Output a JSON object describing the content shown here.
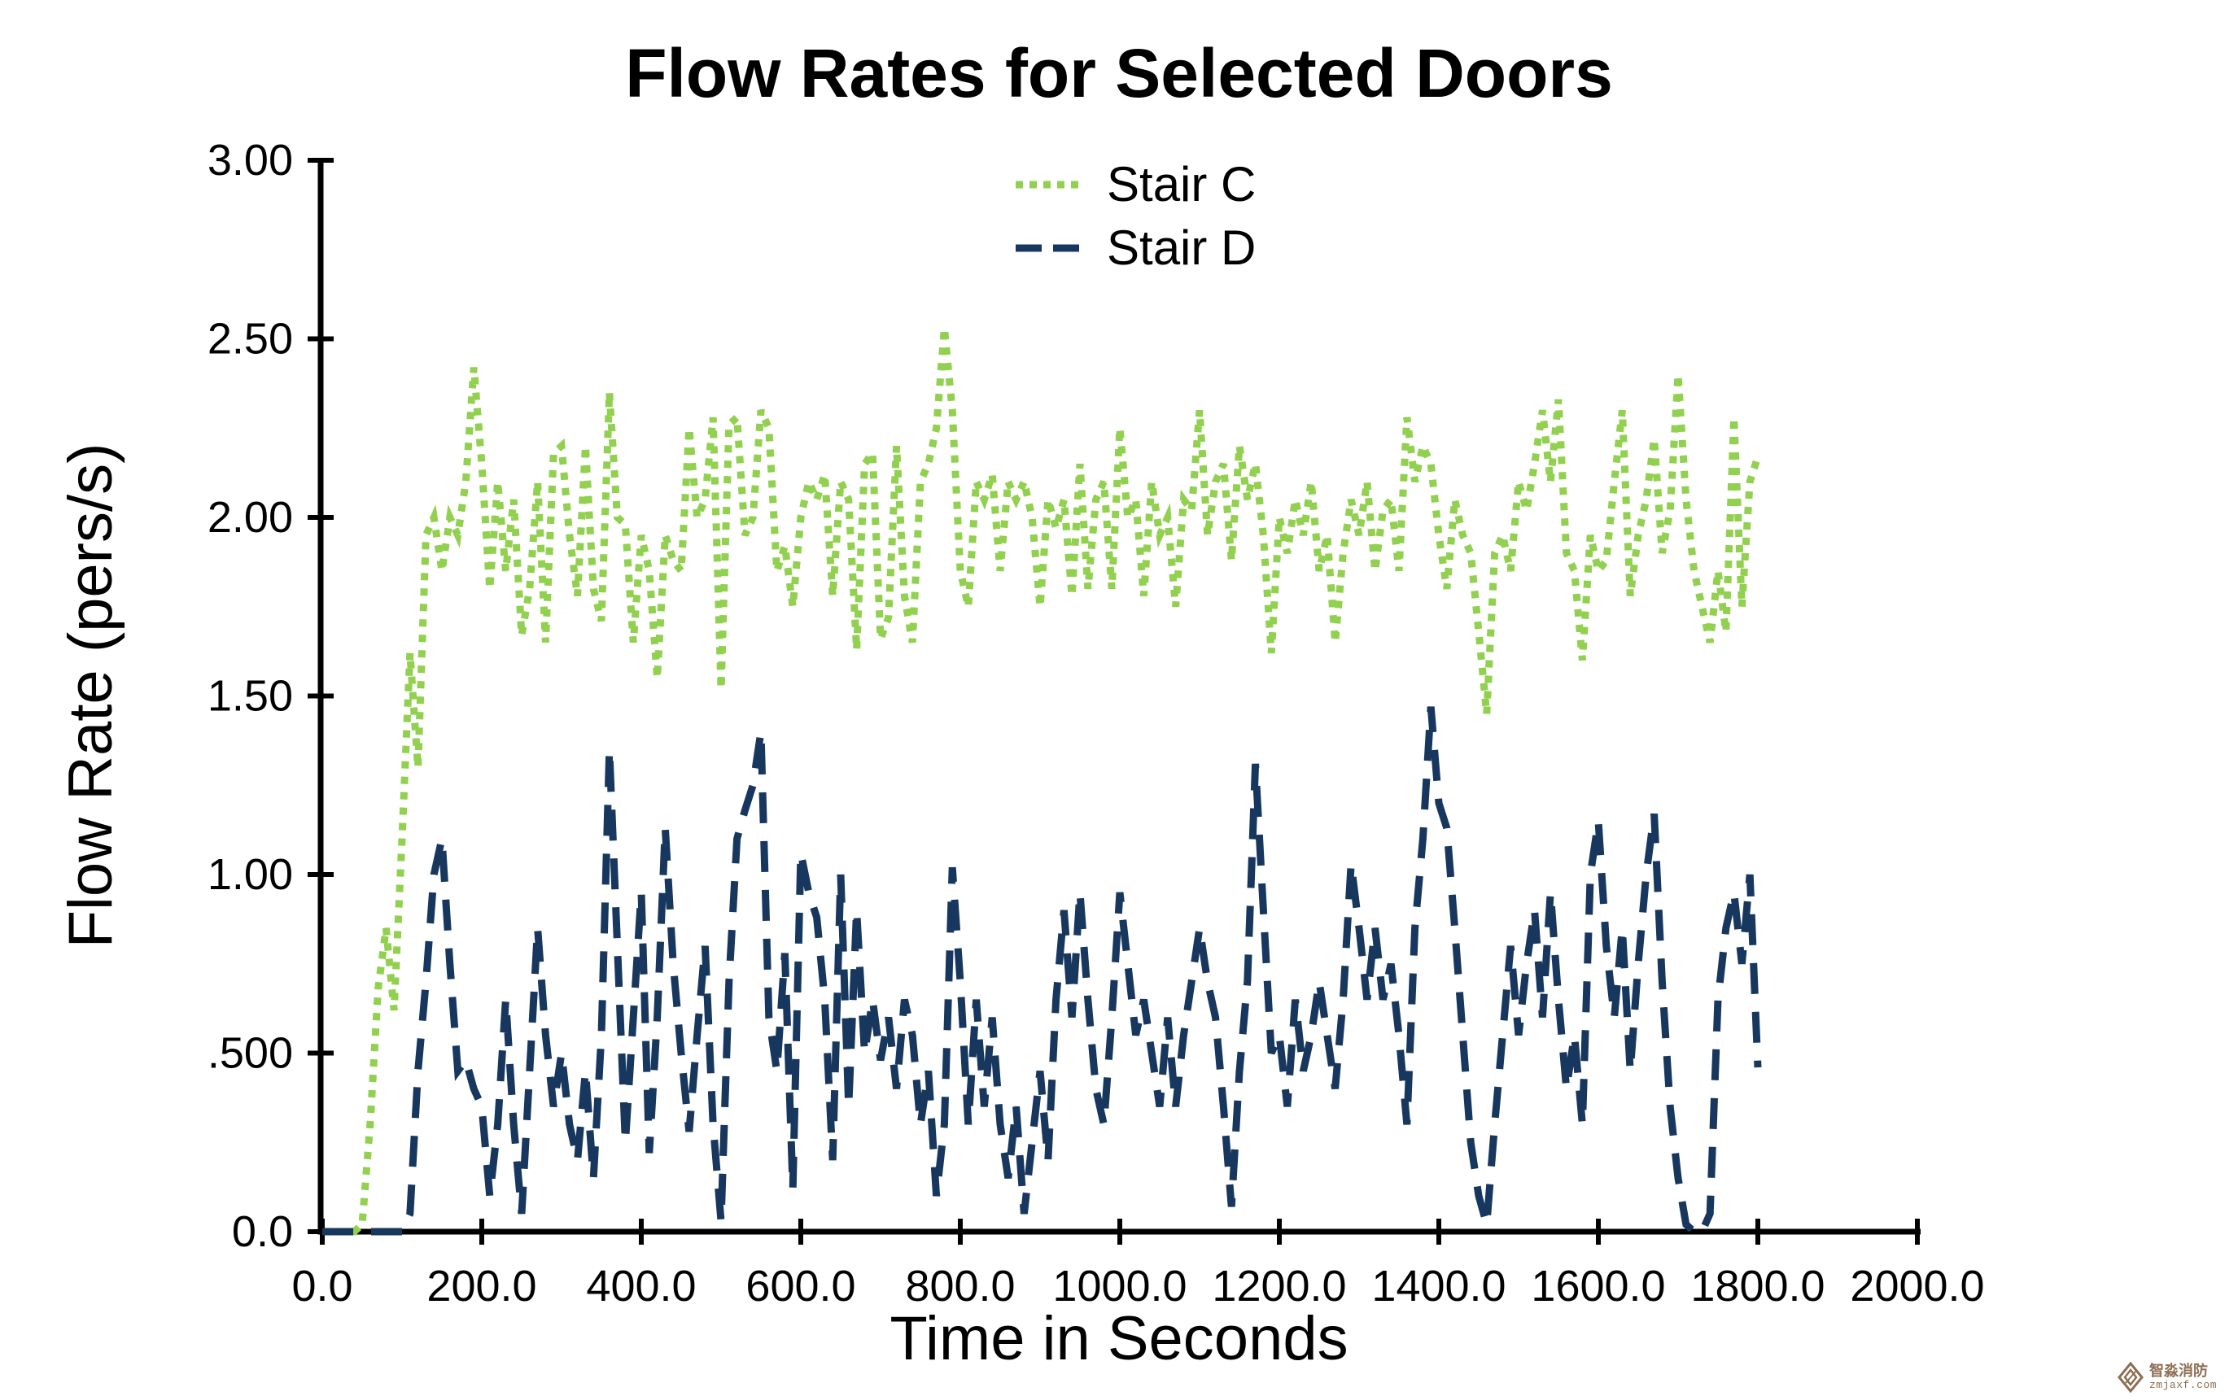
{
  "watermark": {
    "line1": "智淼消防",
    "line2": "zmjaxf.com",
    "color": "#8d6e52"
  },
  "chart_data": {
    "type": "line",
    "title": "Flow Rates for Selected Doors",
    "xlabel": "Time in Seconds",
    "ylabel": "Flow Rate (pers/s)",
    "xlim": [
      0,
      2000
    ],
    "ylim": [
      0,
      3
    ],
    "grid": false,
    "legend_position": "top-center-inside",
    "background": "#ffffff",
    "axis_color": "#000000",
    "x_tick_values": [
      0,
      200,
      400,
      600,
      800,
      1000,
      1200,
      1400,
      1600,
      1800,
      2000
    ],
    "x_tick_labels": [
      "0.0",
      "200.0",
      "400.0",
      "600.0",
      "800.0",
      "1000.0",
      "1200.0",
      "1400.0",
      "1600.0",
      "1800.0",
      "2000.0"
    ],
    "y_tick_values": [
      0,
      0.5,
      1.0,
      1.5,
      2.0,
      2.5,
      3.0
    ],
    "y_tick_labels": [
      "0.0",
      ".500",
      "1.00",
      "1.50",
      "2.00",
      "2.50",
      "3.00"
    ],
    "x_start": 0,
    "x_step": 10,
    "series": [
      {
        "name": "Stair C",
        "color": "#92d050",
        "dash": "dotted",
        "values": [
          0,
          0,
          0,
          0,
          0,
          0.02,
          0.3,
          0.68,
          0.85,
          0.62,
          1.1,
          1.62,
          1.3,
          1.95,
          2.0,
          1.85,
          2.0,
          1.95,
          2.1,
          2.42,
          2.15,
          1.8,
          2.1,
          1.85,
          2.05,
          1.67,
          1.8,
          2.1,
          1.65,
          2.18,
          2.2,
          1.95,
          1.78,
          2.2,
          1.8,
          1.71,
          2.35,
          2.0,
          1.98,
          1.65,
          1.95,
          1.85,
          1.55,
          1.95,
          1.88,
          1.85,
          2.25,
          2.0,
          2.05,
          2.28,
          1.52,
          2.26,
          2.28,
          1.95,
          2.0,
          2.3,
          2.25,
          1.85,
          1.92,
          1.75,
          2.0,
          2.1,
          2.05,
          2.12,
          1.78,
          2.1,
          2.05,
          1.63,
          2.15,
          2.18,
          1.66,
          1.72,
          2.2,
          1.78,
          1.65,
          2.1,
          2.15,
          2.25,
          2.53,
          2.3,
          1.85,
          1.75,
          2.1,
          2.05,
          2.12,
          1.85,
          2.1,
          2.05,
          2.1,
          2.0,
          1.75,
          2.05,
          1.97,
          2.05,
          1.78,
          2.15,
          1.8,
          2.05,
          2.1,
          1.8,
          2.25,
          2.0,
          2.05,
          1.78,
          2.1,
          1.95,
          2.0,
          1.75,
          2.05,
          2.02,
          2.3,
          1.95,
          2.1,
          2.15,
          1.88,
          2.2,
          2.05,
          2.15,
          1.95,
          1.62,
          2.0,
          1.9,
          2.05,
          1.95,
          2.1,
          1.85,
          1.95,
          1.65,
          1.9,
          2.05,
          1.95,
          2.1,
          1.85,
          2.02,
          2.05,
          1.85,
          2.28,
          2.1,
          2.2,
          2.15,
          1.95,
          1.8,
          2.05,
          1.95,
          1.9,
          1.68,
          1.45,
          1.9,
          1.95,
          1.85,
          2.1,
          2.02,
          2.15,
          2.3,
          2.1,
          2.33,
          1.9,
          1.85,
          1.6,
          1.95,
          1.85,
          1.88,
          2.1,
          2.3,
          1.78,
          1.95,
          2.05,
          2.22,
          1.9,
          2.02,
          2.4,
          2.05,
          1.85,
          1.75,
          1.65,
          1.85,
          1.68,
          2.28,
          1.75,
          2.1,
          2.17
        ]
      },
      {
        "name": "Stair D",
        "color": "#17375e",
        "dash": "long-dash",
        "values": [
          0,
          0,
          0,
          0,
          0,
          0,
          0,
          0,
          0,
          0,
          0,
          0.05,
          0.45,
          0.7,
          1.0,
          1.1,
          0.75,
          0.45,
          0.48,
          0.4,
          0.35,
          0.1,
          0.3,
          0.65,
          0.3,
          0.05,
          0.45,
          0.85,
          0.55,
          0.35,
          0.5,
          0.3,
          0.2,
          0.45,
          0.15,
          0.55,
          1.35,
          0.8,
          0.25,
          0.6,
          0.95,
          0.22,
          0.6,
          1.13,
          0.75,
          0.5,
          0.28,
          0.55,
          0.8,
          0.3,
          0.03,
          0.7,
          1.1,
          1.18,
          1.25,
          1.4,
          0.6,
          0.45,
          0.78,
          0.12,
          1.06,
          0.95,
          0.88,
          0.65,
          0.2,
          1.0,
          0.35,
          0.9,
          0.5,
          0.65,
          0.48,
          0.6,
          0.4,
          0.65,
          0.55,
          0.3,
          0.45,
          0.1,
          0.3,
          1.02,
          0.7,
          0.3,
          0.65,
          0.35,
          0.6,
          0.3,
          0.15,
          0.35,
          0.05,
          0.25,
          0.45,
          0.2,
          0.65,
          0.9,
          0.6,
          0.95,
          0.65,
          0.4,
          0.3,
          0.6,
          0.95,
          0.75,
          0.55,
          0.65,
          0.5,
          0.35,
          0.6,
          0.35,
          0.55,
          0.7,
          0.85,
          0.7,
          0.6,
          0.35,
          0.07,
          0.45,
          0.7,
          1.31,
          0.9,
          0.5,
          0.55,
          0.35,
          0.65,
          0.45,
          0.55,
          0.7,
          0.55,
          0.4,
          0.65,
          1.03,
          0.85,
          0.65,
          0.85,
          0.65,
          0.75,
          0.55,
          0.3,
          0.85,
          1.1,
          1.47,
          1.2,
          1.13,
          0.85,
          0.55,
          0.25,
          0.1,
          0.02,
          0.3,
          0.55,
          0.8,
          0.55,
          0.75,
          0.9,
          0.6,
          0.95,
          0.65,
          0.4,
          0.55,
          0.3,
          1.0,
          1.15,
          0.8,
          0.6,
          0.85,
          0.45,
          0.75,
          1.0,
          1.17,
          0.7,
          0.35,
          0.15,
          0.02,
          0.0,
          0.0,
          0.05,
          0.65,
          0.85,
          0.95,
          0.75,
          1.0,
          0.46
        ]
      }
    ]
  }
}
